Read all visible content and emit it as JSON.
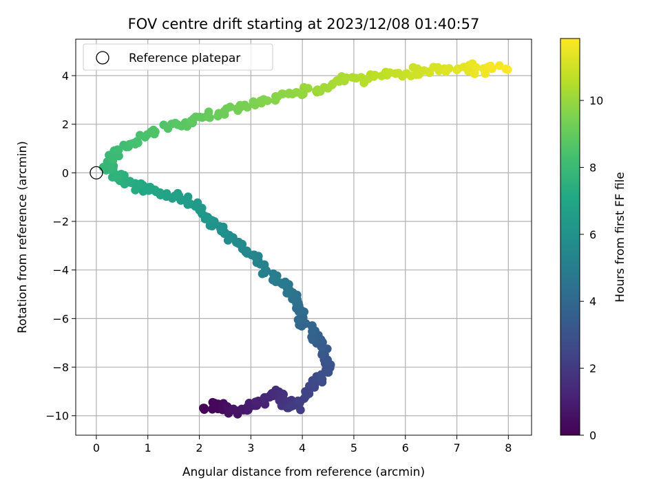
{
  "chart_data": {
    "type": "scatter",
    "title": "FOV centre drift starting at 2023/12/08 01:40:57",
    "xlabel": "Angular distance from reference (arcmin)",
    "ylabel": "Rotation from reference (arcmin)",
    "xlim": [
      -0.4,
      8.45
    ],
    "ylim": [
      -10.8,
      5.5
    ],
    "xticks": [
      0,
      1,
      2,
      3,
      4,
      5,
      6,
      7,
      8
    ],
    "yticks": [
      -10,
      -8,
      -6,
      -4,
      -2,
      0,
      2,
      4
    ],
    "xtick_labels": [
      "0",
      "1",
      "2",
      "3",
      "4",
      "5",
      "6",
      "7",
      "8"
    ],
    "ytick_labels": [
      "−10",
      "−8",
      "−6",
      "−4",
      "−2",
      "0",
      "2",
      "4"
    ],
    "grid": true,
    "legend": {
      "position": "top-left",
      "entries": [
        "Reference platepar"
      ]
    },
    "reference_point": {
      "x": 0,
      "y": 0,
      "label": "Reference platepar"
    },
    "colorbar": {
      "label": "Hours from first FF file",
      "range": [
        0,
        11.85
      ],
      "ticks": [
        0,
        2,
        4,
        6,
        8,
        10
      ],
      "tick_labels": [
        "0",
        "2",
        "4",
        "6",
        "8",
        "10"
      ],
      "colormap": "viridis"
    },
    "path": [
      {
        "x": 2.05,
        "y": -9.7,
        "t": 0.0
      },
      {
        "x": 2.4,
        "y": -9.6,
        "t": 0.3
      },
      {
        "x": 2.7,
        "y": -9.9,
        "t": 0.6
      },
      {
        "x": 3.0,
        "y": -9.6,
        "t": 0.9
      },
      {
        "x": 3.3,
        "y": -9.3,
        "t": 1.2
      },
      {
        "x": 3.5,
        "y": -9.0,
        "t": 1.5
      },
      {
        "x": 3.7,
        "y": -9.4,
        "t": 1.8
      },
      {
        "x": 3.9,
        "y": -9.6,
        "t": 2.1
      },
      {
        "x": 4.15,
        "y": -8.8,
        "t": 2.4
      },
      {
        "x": 4.35,
        "y": -8.5,
        "t": 2.7
      },
      {
        "x": 4.5,
        "y": -8.0,
        "t": 3.0
      },
      {
        "x": 4.4,
        "y": -7.3,
        "t": 3.3
      },
      {
        "x": 4.3,
        "y": -6.8,
        "t": 3.6
      },
      {
        "x": 4.0,
        "y": -6.2,
        "t": 3.9
      },
      {
        "x": 3.95,
        "y": -5.6,
        "t": 4.2
      },
      {
        "x": 3.85,
        "y": -5.0,
        "t": 4.5
      },
      {
        "x": 3.6,
        "y": -4.6,
        "t": 4.8
      },
      {
        "x": 3.3,
        "y": -4.0,
        "t": 5.1
      },
      {
        "x": 3.0,
        "y": -3.3,
        "t": 5.4
      },
      {
        "x": 2.6,
        "y": -2.7,
        "t": 5.7
      },
      {
        "x": 2.3,
        "y": -2.1,
        "t": 6.0
      },
      {
        "x": 2.0,
        "y": -1.6,
        "t": 6.3
      },
      {
        "x": 1.65,
        "y": -1.0,
        "t": 6.6
      },
      {
        "x": 1.2,
        "y": -0.8,
        "t": 6.9
      },
      {
        "x": 0.8,
        "y": -0.5,
        "t": 7.2
      },
      {
        "x": 0.45,
        "y": -0.2,
        "t": 7.5
      },
      {
        "x": 0.2,
        "y": 0.3,
        "t": 7.8
      },
      {
        "x": 0.4,
        "y": 1.0,
        "t": 8.1
      },
      {
        "x": 0.9,
        "y": 1.5,
        "t": 8.4
      },
      {
        "x": 1.5,
        "y": 2.0,
        "t": 8.7
      },
      {
        "x": 2.1,
        "y": 2.3,
        "t": 9.0
      },
      {
        "x": 2.7,
        "y": 2.7,
        "t": 9.3
      },
      {
        "x": 3.3,
        "y": 3.0,
        "t": 9.6
      },
      {
        "x": 3.9,
        "y": 3.3,
        "t": 9.9
      },
      {
        "x": 4.5,
        "y": 3.6,
        "t": 10.2
      },
      {
        "x": 5.1,
        "y": 3.9,
        "t": 10.5
      },
      {
        "x": 5.8,
        "y": 4.1,
        "t": 10.8
      },
      {
        "x": 6.5,
        "y": 4.2,
        "t": 11.1
      },
      {
        "x": 7.2,
        "y": 4.25,
        "t": 11.4
      },
      {
        "x": 7.9,
        "y": 4.35,
        "t": 11.8
      }
    ],
    "point_count": 420
  },
  "colors": {
    "reference_marker": "#000000",
    "grid": "#b0b0b0"
  }
}
